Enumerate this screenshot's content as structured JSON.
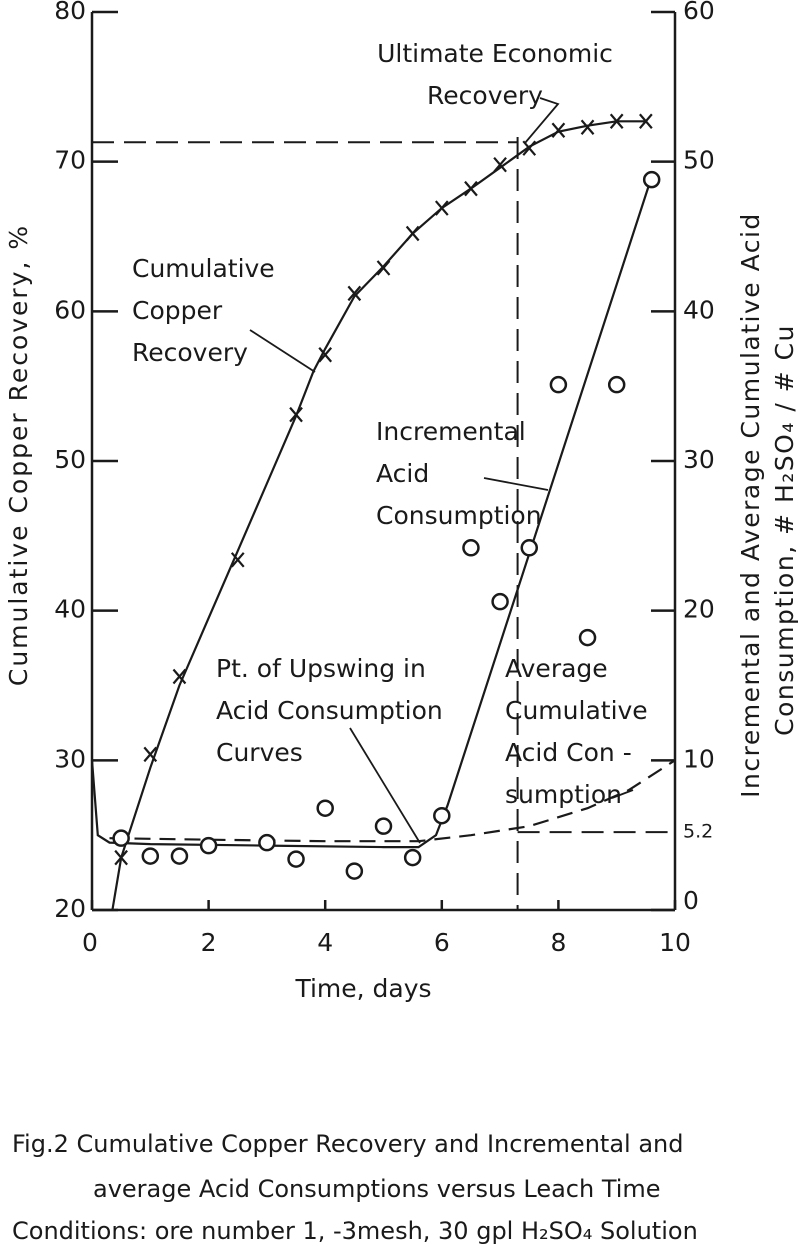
{
  "chart_data": {
    "type": "line",
    "xlabel": "Time, days",
    "ylabel": "Cumulative Copper Recovery, %",
    "y2label": [
      "Incremental and Average Cumulative Acid",
      "Consumption, # H₂SO₄ / # Cu"
    ],
    "xlim": [
      0,
      10
    ],
    "xticks": [
      0,
      2,
      4,
      6,
      8,
      10
    ],
    "ylim": [
      20,
      80
    ],
    "yticks": [
      20,
      30,
      40,
      50,
      60,
      70,
      80
    ],
    "y2lim": [
      0,
      60
    ],
    "y2ticks": [
      0,
      5.2,
      10,
      20,
      30,
      40,
      50,
      60
    ],
    "color": "#1a1a1a",
    "series": [
      {
        "marker": "x",
        "axis": "y",
        "x": [
          0.5,
          1,
          1.5,
          2.5,
          3.5,
          4,
          4.5,
          5,
          5.5,
          6,
          6.5,
          7,
          7.5,
          8,
          8.5,
          9,
          9.5
        ],
        "values": [
          23.5,
          30.4,
          35.6,
          43.4,
          53.1,
          57.1,
          61.2,
          62.9,
          65.2,
          66.9,
          68.2,
          69.8,
          70.9,
          72.1,
          72.3,
          72.7,
          72.7
        ]
      },
      {
        "marker": "o",
        "axis": "y2",
        "x": [
          0.5,
          1,
          1.5,
          2,
          3,
          3.5,
          4,
          4.5,
          5,
          5.5,
          6,
          6.5,
          7,
          7.5,
          8,
          8.5,
          9,
          9.6
        ],
        "values": [
          4.8,
          3.6,
          3.6,
          4.3,
          4.5,
          3.4,
          6.8,
          2.6,
          5.6,
          3.5,
          6.3,
          24.2,
          20.6,
          24.2,
          35.1,
          18.2,
          35.1,
          48.8
        ]
      }
    ],
    "curves": [
      {
        "axis": "y",
        "style": "solid",
        "x": [
          0.35,
          0.5,
          1,
          1.5,
          2,
          2.5,
          3,
          3.5,
          3.8,
          4,
          4.5,
          5,
          5.5,
          6,
          6.5,
          7,
          7.5,
          8,
          8.5,
          9,
          9.5
        ],
        "values": [
          20,
          23.5,
          29.5,
          35,
          39.5,
          44,
          48.5,
          53,
          56,
          57.5,
          61,
          63,
          65.2,
          66.9,
          68.2,
          69.6,
          71,
          72,
          72.4,
          72.7,
          72.7
        ]
      },
      {
        "axis": "y2",
        "style": "solid",
        "x": [
          0,
          0.1,
          0.3,
          1,
          3,
          5,
          5.6,
          5.9,
          6.1,
          9.6
        ],
        "values": [
          10,
          5,
          4.5,
          4.4,
          4.3,
          4.2,
          4.2,
          5,
          7,
          49
        ]
      },
      {
        "axis": "y2",
        "style": "dashed",
        "x": [
          0.3,
          2,
          4,
          5.6,
          6.5,
          7.5,
          8.5,
          9.2,
          10
        ],
        "values": [
          4.8,
          4.7,
          4.6,
          4.6,
          5.0,
          5.6,
          6.8,
          8.0,
          10
        ]
      }
    ],
    "reference_lines": [
      {
        "axis": "y",
        "y": 71.3,
        "x_from": 0,
        "x_to": 7.3
      },
      {
        "axis": "x",
        "x": 7.3
      },
      {
        "axis": "y2",
        "y": 5.2,
        "x_from": 7.3,
        "x_to": 10
      }
    ],
    "annotations": [
      {
        "lines": [
          "Ultimate Economic",
          "Recovery"
        ]
      },
      {
        "lines": [
          "Cumulative",
          "Copper",
          "Recovery"
        ]
      },
      {
        "lines": [
          "Incremental",
          "Acid",
          "Consumption"
        ]
      },
      {
        "lines": [
          "Pt. of Upswing in",
          "Acid Consumption",
          "Curves"
        ]
      },
      {
        "lines": [
          "Average",
          "Cumulative",
          "Acid Con -",
          "sumption"
        ]
      }
    ],
    "caption": [
      "Fig.2 Cumulative Copper Recovery and Incremental and",
      "average Acid Consumptions versus Leach Time",
      "Conditions: ore number 1, -3mesh, 30 gpl H₂SO₄ Solution"
    ]
  }
}
